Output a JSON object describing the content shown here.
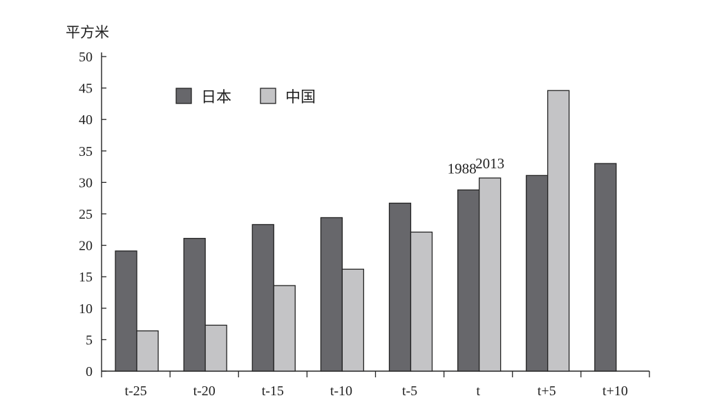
{
  "chart_data": {
    "type": "bar",
    "ylabel": "平方米",
    "ylim": [
      0,
      50
    ],
    "yticks": [
      0,
      5,
      10,
      15,
      20,
      25,
      30,
      35,
      40,
      45,
      50
    ],
    "categories": [
      "t-25",
      "t-20",
      "t-15",
      "t-10",
      "t-5",
      "t",
      "t+5",
      "t+10"
    ],
    "series": [
      {
        "name": "日本",
        "color": "#67676b",
        "values": [
          19.1,
          21.1,
          23.3,
          24.4,
          26.7,
          28.8,
          31.1,
          33.0
        ]
      },
      {
        "name": "中国",
        "color": "#c4c4c6",
        "values": [
          6.4,
          7.3,
          13.6,
          16.2,
          22.1,
          30.7,
          44.6,
          null
        ]
      }
    ],
    "annotations": [
      {
        "text": "1988",
        "category": "t",
        "series": "日本"
      },
      {
        "text": "2013",
        "category": "t",
        "series": "中国"
      }
    ],
    "legend_position": "top-left",
    "grid": false
  }
}
